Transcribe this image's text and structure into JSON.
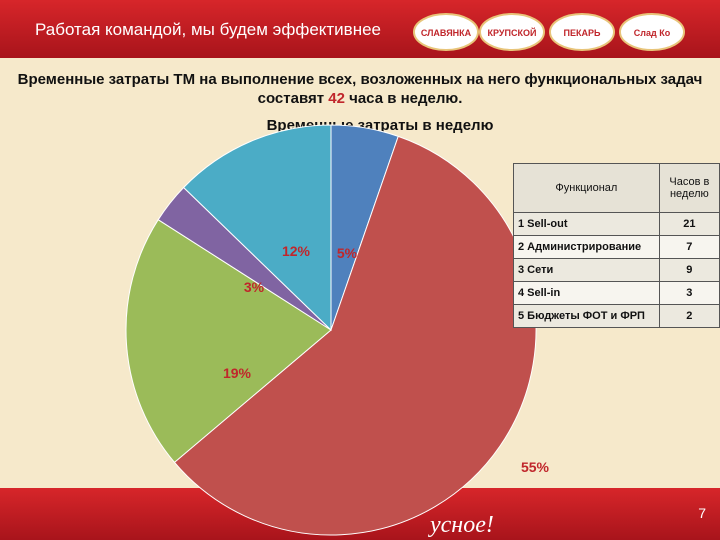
{
  "header": {
    "title": "Работая командой, мы будем эффективнее",
    "brands": [
      "СЛАВЯНКА",
      "КРУПСКОЙ",
      "ПЕКАРЬ",
      "Слад Ко"
    ]
  },
  "heading": {
    "before": "Временные затраты ТМ на выполнение всех, возложенных на него функциональных задач составят ",
    "highlight": "42",
    "after": " часа в неделю."
  },
  "chart_data": {
    "type": "pie",
    "title": "Временные затраты в неделю",
    "values": [
      5,
      55,
      19,
      3,
      12
    ],
    "value_labels": [
      "5%",
      "55%",
      "19%",
      "3%",
      "12%"
    ],
    "colors": [
      "#4f81bd",
      "#c0504d",
      "#9bbb59",
      "#8064a2",
      "#4bacc6"
    ]
  },
  "table": {
    "header": [
      "Функционал",
      "Часов в неделю"
    ],
    "rows": [
      [
        "1 Sell-out",
        "21"
      ],
      [
        "2 Администрирование",
        "7"
      ],
      [
        "3 Сети",
        "9"
      ],
      [
        "4 Sell-in",
        "3"
      ],
      [
        "5 Бюджеты ФОТ и ФРП",
        "2"
      ]
    ]
  },
  "footer": {
    "slogan": "усное!",
    "page": "7"
  }
}
